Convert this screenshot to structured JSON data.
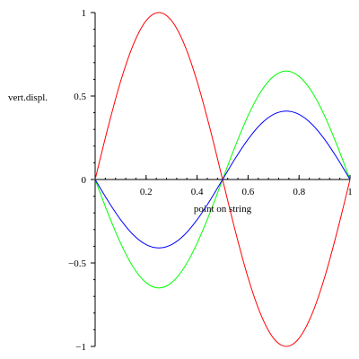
{
  "chart_data": {
    "type": "line",
    "title": "",
    "xlabel": "point on string",
    "ylabel": "vert.displ.",
    "xlim": [
      0,
      1
    ],
    "ylim": [
      -1,
      1
    ],
    "grid": false,
    "legend": "none",
    "x_ticks": [
      0.2,
      0.4,
      0.6,
      0.8,
      1
    ],
    "x_tick_labels": [
      "0.2",
      "0.4",
      "0.6",
      "0.8",
      "1"
    ],
    "y_ticks": [
      1,
      0.5,
      0,
      -0.5,
      -1
    ],
    "y_tick_labels": [
      "1",
      "0.5",
      "0",
      "−0.5",
      "−1"
    ],
    "x_minor_step": 0.04,
    "y_minor_step": 0.1,
    "series": [
      {
        "color": "#ff0000",
        "x": [
          0,
          0.05,
          0.1,
          0.15,
          0.2,
          0.25,
          0.3,
          0.35,
          0.4,
          0.45,
          0.5,
          0.55,
          0.6,
          0.65,
          0.7,
          0.75,
          0.8,
          0.85,
          0.9,
          0.95,
          1
        ],
        "values": [
          0,
          0.309,
          0.588,
          0.809,
          0.951,
          1,
          0.951,
          0.809,
          0.588,
          0.309,
          0,
          -0.309,
          -0.588,
          -0.809,
          -0.951,
          -1,
          -0.951,
          -0.809,
          -0.588,
          -0.309,
          0
        ]
      },
      {
        "color": "#00ff00",
        "x": [
          0,
          0.05,
          0.1,
          0.15,
          0.2,
          0.25,
          0.3,
          0.35,
          0.4,
          0.45,
          0.5,
          0.55,
          0.6,
          0.65,
          0.7,
          0.75,
          0.8,
          0.85,
          0.9,
          0.95,
          1
        ],
        "values": [
          0,
          -0.201,
          -0.382,
          -0.526,
          -0.618,
          -0.65,
          -0.618,
          -0.526,
          -0.382,
          -0.201,
          0,
          0.201,
          0.382,
          0.526,
          0.618,
          0.65,
          0.618,
          0.526,
          0.382,
          0.201,
          0
        ]
      },
      {
        "color": "#0000ff",
        "x": [
          0,
          0.05,
          0.1,
          0.15,
          0.2,
          0.25,
          0.3,
          0.35,
          0.4,
          0.45,
          0.5,
          0.55,
          0.6,
          0.65,
          0.7,
          0.75,
          0.8,
          0.85,
          0.9,
          0.95,
          1
        ],
        "values": [
          0,
          -0.127,
          -0.241,
          -0.332,
          -0.39,
          -0.41,
          -0.39,
          -0.332,
          -0.241,
          -0.127,
          0,
          0.127,
          0.241,
          0.332,
          0.39,
          0.41,
          0.39,
          0.332,
          0.241,
          0.127,
          0
        ]
      }
    ]
  }
}
